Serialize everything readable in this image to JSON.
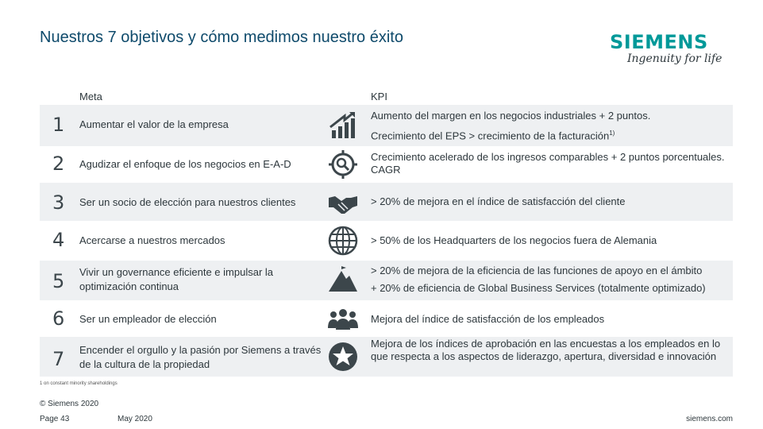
{
  "title": "Nuestros 7 objetivos y cómo medimos nuestro éxito",
  "logo": {
    "wordmark": "SIEMENS",
    "tagline": "Ingenuity for life",
    "color": "#009999"
  },
  "columns": {
    "goal": "Meta",
    "kpi": "KPI"
  },
  "rows": [
    {
      "num": "1",
      "goal": "Aumentar el valor de la empresa",
      "icon": "growth-chart-icon",
      "kpi_line1": "Aumento del margen en los negocios industriales + 2 puntos.",
      "kpi_line2": "Crecimiento del EPS > crecimiento de la facturación",
      "kpi_sup": "1)"
    },
    {
      "num": "2",
      "goal": "Agudizar el enfoque de los negocios en E-A-D",
      "icon": "target-magnifier-icon",
      "kpi_line1": "Crecimiento acelerado de los ingresos comparables + 2 puntos porcentuales. CAGR"
    },
    {
      "num": "3",
      "goal": "Ser un socio de elección para nuestros clientes",
      "icon": "handshake-icon",
      "kpi_line1": "> 20% de mejora en el índice de satisfacción del cliente"
    },
    {
      "num": "4",
      "goal": "Acercarse a nuestros mercados",
      "icon": "globe-icon",
      "kpi_line1": "> 50% de los Headquarters de los negocios fuera de Alemania"
    },
    {
      "num": "5",
      "goal": "Vivir un governance eficiente e impulsar la optimización continua",
      "icon": "mountain-icon",
      "kpi_line1": "> 20% de mejora de la eficiencia de las funciones de apoyo en el ámbito",
      "kpi_line2": "+ 20% de eficiencia de Global Business Services (totalmente optimizado)"
    },
    {
      "num": "6",
      "goal": "Ser un empleador de elección",
      "icon": "people-group-icon",
      "kpi_line1": "Mejora del índice de satisfacción de los empleados"
    },
    {
      "num": "7",
      "goal": "Encender el orgullo y la pasión por Siemens a través de la cultura de la propiedad",
      "icon": "star-badge-icon",
      "kpi_line1": "Mejora de los índices de aprobación en las encuestas a los empleados en lo que respecta a los aspectos de liderazgo, apertura, diversidad e innovación"
    }
  ],
  "footnote": "1 on constant minority shareholdings",
  "copyright": "© Siemens 2020",
  "page_label": "Page 43",
  "date": "May 2020",
  "website": "siemens.com"
}
